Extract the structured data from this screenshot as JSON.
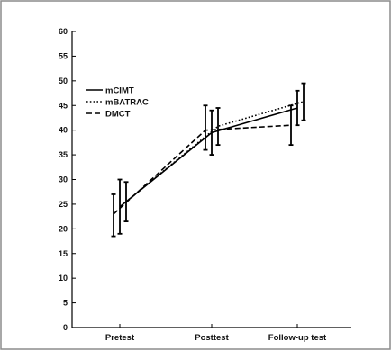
{
  "chart_data": {
    "type": "line",
    "categories": [
      "Pretest",
      "Posttest",
      "Follow-up test"
    ],
    "ylim": [
      0,
      60
    ],
    "yticks": [
      0,
      5,
      10,
      15,
      20,
      25,
      30,
      35,
      40,
      45,
      50,
      55,
      60
    ],
    "grid": false,
    "legend_position": "upper-left",
    "series": [
      {
        "name": "mCIMT",
        "style": "solid",
        "values": [
          24.5,
          39.5,
          44.5
        ],
        "error": [
          [
            19.0,
            30.0
          ],
          [
            35.0,
            44.0
          ],
          [
            41.0,
            48.0
          ]
        ],
        "offset": 0
      },
      {
        "name": "mBATRAC",
        "style": "dotted",
        "values": [
          25.5,
          40.8,
          45.8
        ],
        "error": [
          [
            21.5,
            29.5
          ],
          [
            37.0,
            44.5
          ],
          [
            42.0,
            49.5
          ]
        ],
        "offset": 1
      },
      {
        "name": "DMCT",
        "style": "dashed",
        "values": [
          23.0,
          40.0,
          41.0
        ],
        "error": [
          [
            18.5,
            27.0
          ],
          [
            36.0,
            45.0
          ],
          [
            37.0,
            45.0
          ]
        ],
        "offset": -1
      }
    ]
  }
}
